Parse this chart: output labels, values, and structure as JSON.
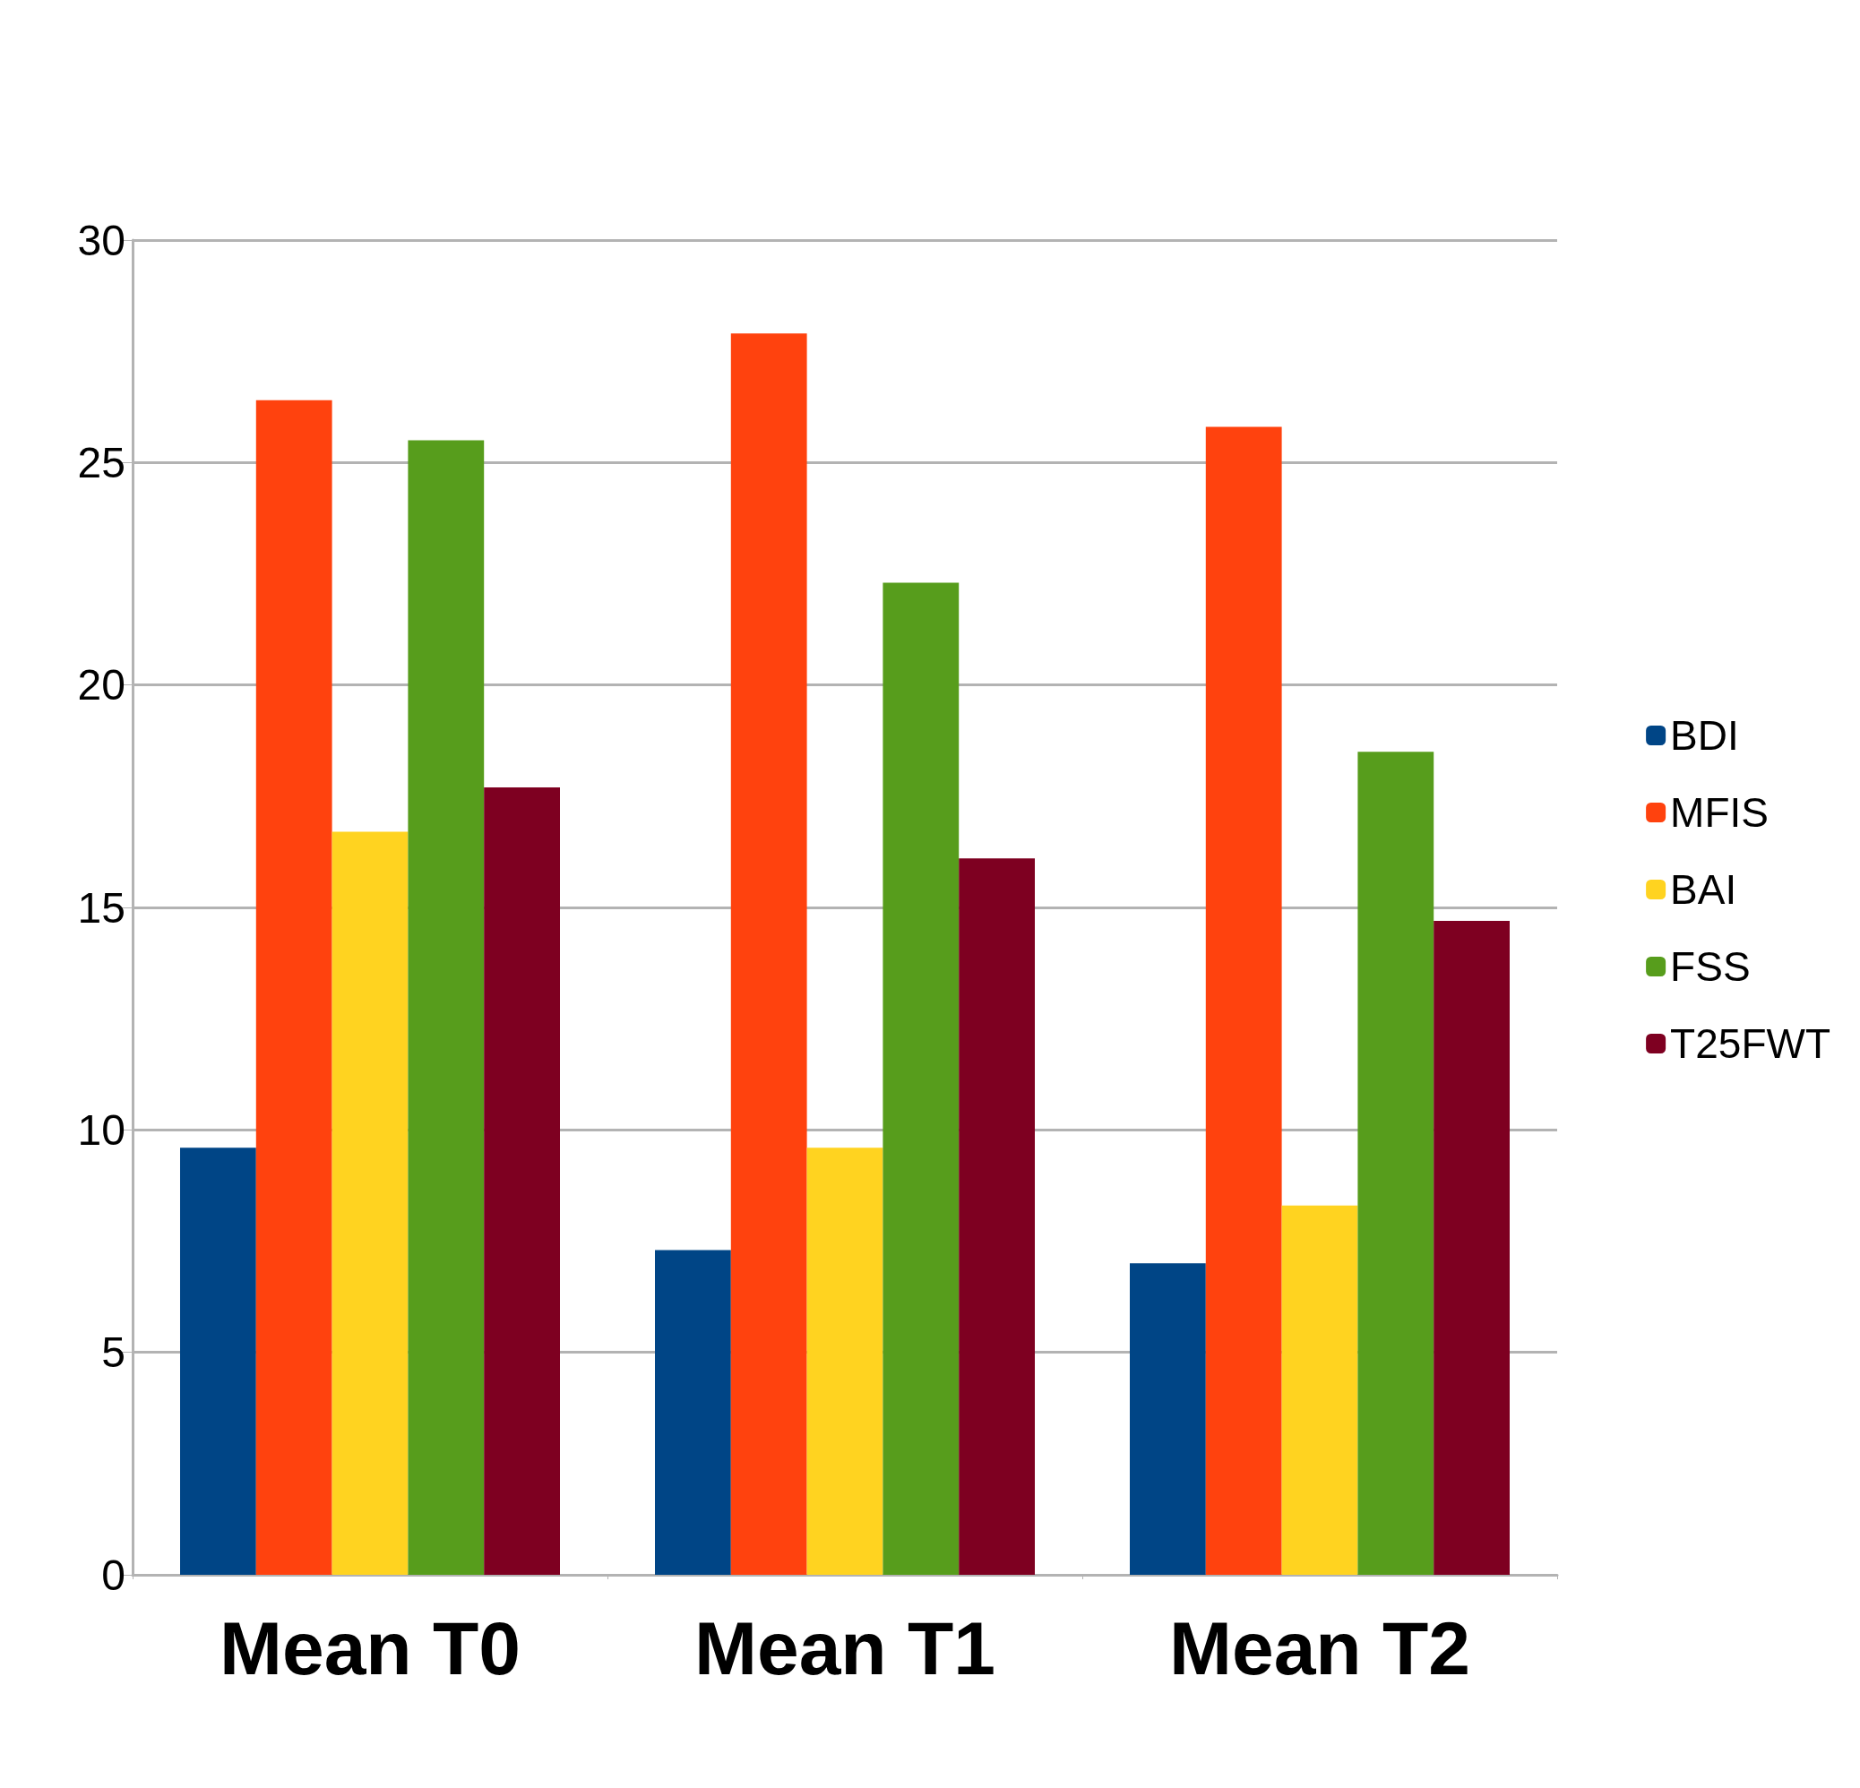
{
  "chart_data": {
    "type": "bar",
    "categories": [
      "Mean T0",
      "Mean T1",
      "Mean T2"
    ],
    "series": [
      {
        "name": "BDI",
        "color": "#004586",
        "values": [
          9.6,
          7.3,
          7.0
        ]
      },
      {
        "name": "MFIS",
        "color": "#ff420e",
        "values": [
          26.4,
          27.9,
          25.8
        ]
      },
      {
        "name": "BAI",
        "color": "#ffd320",
        "values": [
          16.7,
          9.6,
          8.3
        ]
      },
      {
        "name": "FSS",
        "color": "#579d1c",
        "values": [
          25.5,
          22.3,
          18.5
        ]
      },
      {
        "name": "T25FWT",
        "color": "#7e0021",
        "values": [
          17.7,
          16.1,
          14.7
        ]
      }
    ],
    "ylim": [
      0,
      30
    ],
    "yticks": [
      0,
      5,
      10,
      15,
      20,
      25,
      30
    ],
    "grid": "y",
    "legend": "right"
  }
}
